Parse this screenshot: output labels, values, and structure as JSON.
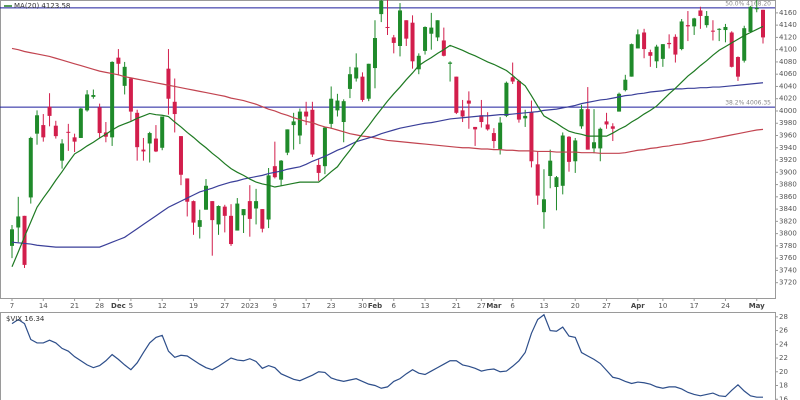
{
  "chart_data": [
    {
      "type": "candlestick",
      "legend_label": "MA(20) 4123.58",
      "categories": [
        "7",
        null,
        null,
        null,
        null,
        "14",
        null,
        null,
        null,
        null,
        "21",
        null,
        null,
        null,
        "28",
        null,
        null,
        "Dec",
        null,
        "5",
        null,
        null,
        null,
        null,
        "12",
        null,
        null,
        null,
        null,
        "19",
        null,
        null,
        null,
        null,
        "27",
        null,
        null,
        null,
        "2023",
        null,
        null,
        null,
        "9",
        null,
        null,
        null,
        null,
        "17",
        null,
        null,
        null,
        "23",
        null,
        null,
        null,
        null,
        "30",
        null,
        "Feb",
        null,
        null,
        "6",
        null,
        null,
        null,
        null,
        "13",
        null,
        null,
        null,
        null,
        "21",
        null,
        null,
        null,
        "27",
        null,
        "Mar",
        null,
        null,
        "6",
        null,
        null,
        null,
        null,
        "13",
        null,
        null,
        null,
        null,
        "20",
        null,
        null,
        null,
        null,
        "27",
        null,
        null,
        null,
        null,
        "Apr",
        null,
        null,
        null,
        "10",
        null,
        null,
        null,
        null,
        "17",
        null,
        null,
        null,
        null,
        "24",
        null,
        null,
        null,
        null,
        "May",
        null
      ],
      "open": [
        3780,
        3810,
        3829,
        3859,
        3963,
        3977,
        4007,
        3976,
        3919,
        3966,
        3957,
        3956,
        4001,
        4023,
        4006,
        3965,
        3957,
        4087,
        4041,
        4053,
        3997,
        3937,
        3947,
        3955,
        3940,
        4069,
        4015,
        3959,
        3890,
        3853,
        3811,
        3839,
        3853,
        3815,
        3844,
        3829,
        3805,
        3830,
        3853,
        3841,
        3840,
        3823,
        3910,
        3888,
        3932,
        3977,
        3960,
        3999,
        4002,
        3912,
        3910,
        3979,
        4001,
        3982,
        4036,
        4053,
        4056,
        4020,
        4070,
        4158,
        4137,
        4120,
        4106,
        4148,
        4144,
        4068,
        4098,
        4126,
        4120,
        4115,
        4077,
        4056,
        4001,
        4017,
        3974,
        3993,
        3978,
        3964,
        3938,
        3992,
        4055,
        4049,
        3988,
        3998,
        3913,
        3835,
        3894,
        3876,
        3878,
        3958,
        3918,
        3975,
        4003,
        3939,
        3939,
        3983,
        3975,
        3999,
        4034,
        4056,
        4102,
        4128,
        4096,
        4081,
        4085,
        4111,
        4121,
        4101,
        4140,
        4138,
        4164,
        4140,
        4131,
        4133,
        4132,
        4128,
        4088,
        4082,
        4129,
        4166,
        4165
      ],
      "high": [
        3814,
        3860,
        3829,
        3958,
        4001,
        3995,
        4029,
        3984,
        3954,
        3979,
        3963,
        4005,
        4034,
        4035,
        4012,
        3982,
        4081,
        4101,
        4080,
        4053,
        4002,
        3956,
        3966,
        3977,
        3991,
        4101,
        4053,
        3959,
        3890,
        3854,
        3839,
        3889,
        3853,
        3846,
        3847,
        3848,
        3858,
        3840,
        3879,
        3873,
        3840,
        3907,
        3950,
        3920,
        3970,
        3997,
        4004,
        4015,
        4015,
        3922,
        3973,
        4040,
        4028,
        4019,
        4072,
        4094,
        4063,
        4077,
        4148,
        4195,
        4183,
        4124,
        4176,
        4148,
        4156,
        4094,
        4138,
        4160,
        4148,
        4136,
        4081,
        4056,
        4018,
        4032,
        3974,
        4018,
        3998,
        3972,
        3990,
        4048,
        4079,
        4051,
        4002,
        4017,
        3934,
        3905,
        3937,
        3894,
        3965,
        3959,
        3956,
        4010,
        4039,
        4003,
        3973,
        3997,
        3980,
        4030,
        4059,
        4110,
        4133,
        4134,
        4100,
        4108,
        4109,
        4125,
        4125,
        4150,
        4163,
        4152,
        4170,
        4163,
        4148,
        4135,
        4142,
        4130,
        4089,
        4139,
        4171,
        4187,
        4165
      ],
      "low": [
        3760,
        3786,
        3744,
        3849,
        3945,
        3950,
        3975,
        3955,
        3906,
        3935,
        3933,
        3956,
        3999,
        4020,
        3955,
        3949,
        3943,
        4058,
        4027,
        3984,
        3919,
        3919,
        3916,
        3933,
        3936,
        3994,
        3965,
        3879,
        3828,
        3798,
        3792,
        3839,
        3764,
        3798,
        3802,
        3780,
        3805,
        3801,
        3795,
        3815,
        3802,
        3809,
        3890,
        3878,
        3928,
        3937,
        3946,
        3977,
        3925,
        3886,
        3897,
        3971,
        3991,
        3949,
        4021,
        4048,
        4015,
        4016,
        4037,
        4145,
        4124,
        4094,
        4089,
        4106,
        4069,
        4060,
        4092,
        4100,
        4114,
        4089,
        4048,
        3995,
        3982,
        3971,
        3943,
        3973,
        3968,
        3939,
        3929,
        3990,
        4044,
        3981,
        3974,
        3908,
        3847,
        3808,
        3874,
        3838,
        3864,
        3901,
        3899,
        3971,
        3937,
        3931,
        3918,
        3971,
        3951,
        3999,
        4032,
        4056,
        4102,
        4086,
        4072,
        4070,
        4072,
        4102,
        4079,
        4099,
        4114,
        4124,
        4134,
        4136,
        4115,
        4114,
        4112,
        4071,
        4049,
        4079,
        4128,
        4161,
        4110
      ],
      "close": [
        3807,
        3828,
        3749,
        3956,
        3993,
        3957,
        3992,
        3959,
        3947,
        3965,
        3950,
        4004,
        4027,
        4026,
        3964,
        3958,
        4080,
        4077,
        4072,
        3999,
        3941,
        3934,
        3964,
        3934,
        3991,
        4020,
        3995,
        3896,
        3852,
        3818,
        3822,
        3878,
        3822,
        3845,
        3829,
        3783,
        3849,
        3840,
        3824,
        3853,
        3808,
        3895,
        3892,
        3919,
        3970,
        3983,
        3999,
        3991,
        3929,
        3899,
        3973,
        4020,
        4017,
        4016,
        4060,
        4071,
        4018,
        4077,
        4119,
        4180,
        4136,
        4111,
        4164,
        4118,
        4081,
        4090,
        4137,
        4136,
        4148,
        4090,
        4079,
        3997,
        3991,
        4012,
        3970,
        3982,
        3970,
        3951,
        3981,
        4046,
        4048,
        3986,
        3992,
        3918,
        3862,
        3856,
        3919,
        3892,
        3960,
        3917,
        3952,
        4003,
        3937,
        3949,
        3971,
        3978,
        3971,
        4028,
        4051,
        4109,
        4125,
        4101,
        4090,
        4105,
        4109,
        4109,
        4092,
        4146,
        4138,
        4151,
        4155,
        4155,
        4130,
        4134,
        4137,
        4072,
        4056,
        4135,
        4170,
        4168,
        4120
      ],
      "up_color": "#1f8a2a",
      "down_color": "#d21e4c",
      "moving_averages": [
        {
          "color": "#c24450",
          "values": [
            4102,
            4100,
            4097,
            4095,
            4093,
            4091,
            4089,
            4086,
            4083,
            4080,
            4077,
            4074,
            4071,
            4068,
            4065,
            4063,
            4061,
            4059,
            4056,
            4054,
            4052,
            4050,
            4048,
            4046,
            4044,
            4042,
            4040,
            4038,
            4036,
            4034,
            4032,
            4030,
            4028,
            4026,
            4024,
            4021,
            4019,
            4017,
            4014,
            4011,
            4007,
            4003,
            4000,
            3996,
            3993,
            3989,
            3986,
            3983,
            3981,
            3977,
            3974,
            3972,
            3969,
            3966,
            3963,
            3961,
            3959,
            3958,
            3956,
            3954,
            3952,
            3951,
            3950,
            3949,
            3948,
            3947,
            3946,
            3945,
            3944,
            3943,
            3942,
            3941,
            3940,
            3940,
            3939,
            3938,
            3938,
            3937,
            3937,
            3936,
            3936,
            3935,
            3935,
            3935,
            3934,
            3934,
            3934,
            3933,
            3933,
            3933,
            3933,
            3932,
            3932,
            3932,
            3931,
            3931,
            3931,
            3931,
            3932,
            3934,
            3936,
            3937,
            3939,
            3940,
            3942,
            3943,
            3945,
            3946,
            3948,
            3950,
            3951,
            3953,
            3955,
            3957,
            3959,
            3961,
            3963,
            3965,
            3967,
            3969,
            3970
          ]
        },
        {
          "color": "#3a3f99",
          "values": [
            3786,
            3785,
            3784,
            3783,
            3781,
            3780,
            3779,
            3778,
            3778,
            3778,
            3778,
            3778,
            3778,
            3778,
            3778,
            3782,
            3786,
            3790,
            3794,
            3801,
            3808,
            3815,
            3822,
            3829,
            3836,
            3843,
            3848,
            3853,
            3858,
            3863,
            3868,
            3871,
            3874,
            3878,
            3881,
            3884,
            3886,
            3889,
            3891,
            3893,
            3895,
            3898,
            3900,
            3902,
            3905,
            3907,
            3909,
            3913,
            3918,
            3922,
            3926,
            3931,
            3936,
            3940,
            3945,
            3950,
            3953,
            3956,
            3959,
            3963,
            3966,
            3969,
            3972,
            3974,
            3976,
            3978,
            3980,
            3981,
            3983,
            3985,
            3987,
            3988,
            3989,
            3990,
            3991,
            3992,
            3992,
            3993,
            3994,
            3994,
            3995,
            3996,
            3997,
            3998,
            3999,
            4001,
            4002,
            4003,
            4005,
            4007,
            4009,
            4012,
            4014,
            4016,
            4018,
            4019,
            4021,
            4023,
            4025,
            4026,
            4028,
            4029,
            4031,
            4032,
            4033,
            4035,
            4036,
            4036,
            4037,
            4037,
            4038,
            4038,
            4039,
            4039,
            4040,
            4041,
            4042,
            4043,
            4044,
            4045,
            4046
          ]
        },
        {
          "color": "#1e7a22",
          "values": [
            3746,
            3770,
            3795,
            3819,
            3843,
            3858,
            3872,
            3887,
            3901,
            3916,
            3930,
            3936,
            3943,
            3949,
            3956,
            3962,
            3969,
            3975,
            3979,
            3983,
            3988,
            3992,
            3996,
            3994,
            3993,
            3991,
            3982,
            3974,
            3965,
            3957,
            3948,
            3940,
            3931,
            3923,
            3914,
            3906,
            3900,
            3895,
            3889,
            3884,
            3881,
            3879,
            3876,
            3878,
            3880,
            3882,
            3884,
            3884,
            3884,
            3884,
            3892,
            3901,
            3909,
            3923,
            3936,
            3950,
            3963,
            3976,
            3990,
            4003,
            4016,
            4028,
            4039,
            4051,
            4062,
            4074,
            4081,
            4087,
            4094,
            4100,
            4107,
            4103,
            4099,
            4094,
            4090,
            4085,
            4080,
            4076,
            4071,
            4066,
            4058,
            4049,
            4041,
            4025,
            4008,
            3992,
            3986,
            3980,
            3973,
            3967,
            3964,
            3962,
            3959,
            3959,
            3959,
            3959,
            3964,
            3970,
            3975,
            3982,
            3988,
            3995,
            4001,
            4008,
            4018,
            4028,
            4037,
            4047,
            4057,
            4065,
            4074,
            4082,
            4091,
            4099,
            4105,
            4111,
            4117,
            4123,
            4128,
            4133,
            4138
          ]
        }
      ],
      "levels": [
        {
          "value": 4168.2,
          "label": "50.0% 4168.20"
        },
        {
          "value": 4006.35,
          "label": "38.2% 4006.35"
        }
      ],
      "level_color": "#1c1c9c",
      "ylim": [
        3695,
        4181
      ],
      "yticks": [
        3720,
        3740,
        3760,
        3780,
        3800,
        3820,
        3840,
        3860,
        3880,
        3900,
        3920,
        3940,
        3960,
        3980,
        4000,
        4020,
        4040,
        4060,
        4080,
        4100,
        4120,
        4140,
        4160
      ]
    },
    {
      "type": "line",
      "legend_label": "$VIX 16.34",
      "values": [
        27.0,
        27.6,
        27.0,
        24.7,
        24.2,
        24.2,
        24.6,
        24.2,
        23.4,
        23.0,
        22.2,
        21.6,
        21.0,
        20.6,
        20.9,
        21.6,
        22.5,
        21.8,
        21.0,
        20.3,
        21.3,
        22.8,
        24.2,
        25.0,
        25.3,
        23.0,
        22.1,
        22.4,
        22.3,
        21.7,
        21.1,
        20.6,
        20.3,
        20.8,
        21.4,
        22.0,
        21.7,
        21.6,
        21.9,
        21.5,
        20.5,
        20.9,
        20.6,
        19.7,
        19.3,
        18.9,
        18.7,
        19.1,
        19.5,
        20.0,
        19.9,
        19.1,
        18.8,
        18.6,
        18.8,
        19.0,
        18.6,
        18.2,
        18.0,
        17.6,
        17.8,
        18.6,
        19.0,
        19.7,
        20.3,
        19.8,
        19.6,
        20.1,
        20.6,
        21.1,
        21.6,
        21.6,
        21.0,
        20.8,
        20.5,
        20.1,
        20.3,
        20.4,
        20.0,
        20.1,
        20.8,
        21.6,
        22.8,
        25.6,
        27.6,
        28.3,
        26.0,
        25.9,
        26.5,
        25.2,
        25.0,
        22.8,
        22.3,
        21.8,
        21.2,
        20.2,
        19.2,
        19.0,
        18.6,
        18.3,
        18.5,
        18.4,
        18.2,
        17.8,
        17.6,
        17.8,
        17.8,
        17.5,
        17.0,
        16.7,
        16.5,
        16.7,
        16.9,
        16.5,
        16.4,
        17.3,
        18.1,
        17.2,
        16.5,
        16.3,
        16.3
      ],
      "color": "#2d4e8a",
      "ylim": [
        15.6,
        28.7
      ],
      "yticks": [
        16,
        18,
        20,
        22,
        24,
        26,
        28
      ]
    }
  ]
}
